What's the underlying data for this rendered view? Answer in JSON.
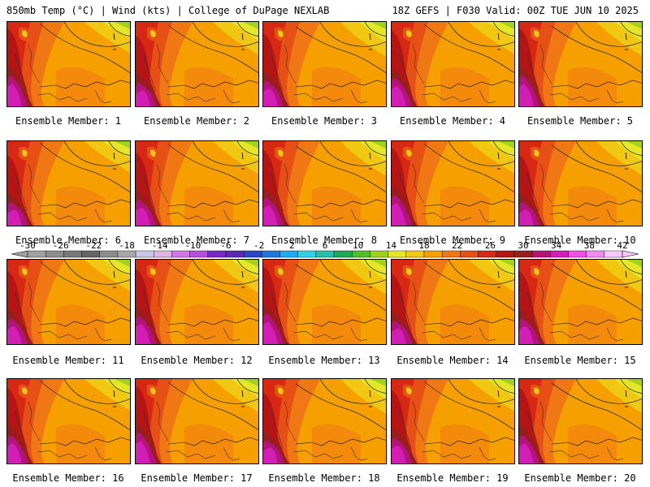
{
  "header": {
    "left": "850mb Temp (°C) | Wind (kts) | College of DuPage NEXLAB",
    "right": "18Z GEFS | F030 Valid: 00Z TUE JUN 10 2025"
  },
  "colorbar": {
    "tick_labels": [
      "-30",
      "-26",
      "-22",
      "-18",
      "-14",
      "-10",
      "-6",
      "-2",
      "2",
      "6",
      "10",
      "14",
      "18",
      "22",
      "26",
      "30",
      "34",
      "38",
      "42"
    ],
    "colors": [
      "#a0a0a0",
      "#8c8c8c",
      "#787878",
      "#646464",
      "#8c8c8c",
      "#a8a8a8",
      "#c8c8e6",
      "#e0b4e6",
      "#d278e6",
      "#b450dc",
      "#7828c8",
      "#5a28b4",
      "#2846c8",
      "#1e78dc",
      "#1eaaf0",
      "#32d2e6",
      "#28beaa",
      "#1eaa5a",
      "#50be28",
      "#a0d21e",
      "#e6e628",
      "#f0c814",
      "#f5a000",
      "#f07814",
      "#e65014",
      "#d72814",
      "#b41414",
      "#961e1e",
      "#b4147a",
      "#d21eb4",
      "#f050e6",
      "#f08cf0",
      "#fac8fa"
    ]
  },
  "panels": [
    {
      "label": "Ensemble Member: 1"
    },
    {
      "label": "Ensemble Member: 2"
    },
    {
      "label": "Ensemble Member: 3"
    },
    {
      "label": "Ensemble Member: 4"
    },
    {
      "label": "Ensemble Member: 5"
    },
    {
      "label": "Ensemble Member: 6"
    },
    {
      "label": "Ensemble Member: 7"
    },
    {
      "label": "Ensemble Member: 8"
    },
    {
      "label": "Ensemble Member: 9"
    },
    {
      "label": "Ensemble Member: 10"
    },
    {
      "label": "Ensemble Member: 11"
    },
    {
      "label": "Ensemble Member: 12"
    },
    {
      "label": "Ensemble Member: 13"
    },
    {
      "label": "Ensemble Member: 14"
    },
    {
      "label": "Ensemble Member: 15"
    },
    {
      "label": "Ensemble Member: 16"
    },
    {
      "label": "Ensemble Member: 17"
    },
    {
      "label": "Ensemble Member: 18"
    },
    {
      "label": "Ensemble Member: 19"
    },
    {
      "label": "Ensemble Member: 20"
    }
  ]
}
